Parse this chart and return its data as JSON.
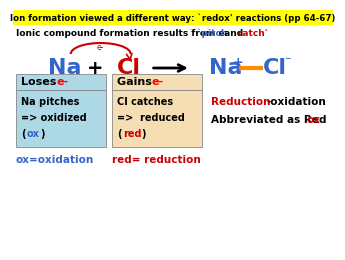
{
  "title": "Ion formation viewed a different way: `redox' reactions (pp 64-67)",
  "title_bg": "#FFFF00",
  "na_color": "#3366CC",
  "cl_color": "#CC0000",
  "product_na_color": "#3366CC",
  "product_cl_color": "#3366CC",
  "box_left_bg": "#ADD8E6",
  "box_right_bg": "#F5DEB3",
  "box_left_text_color_highlight": "#3366CC",
  "box_right_text_color_highlight": "#CC0000",
  "redox_color_red": "#CC0000",
  "redox_color_black": "black",
  "bottom_left_color": "#3366CC",
  "bottom_right_color": "#CC0000",
  "bg_color": "white",
  "electron_arc_color": "#CC0000",
  "orange_dash": "#FF8C00",
  "pitch_color": "#3366CC"
}
